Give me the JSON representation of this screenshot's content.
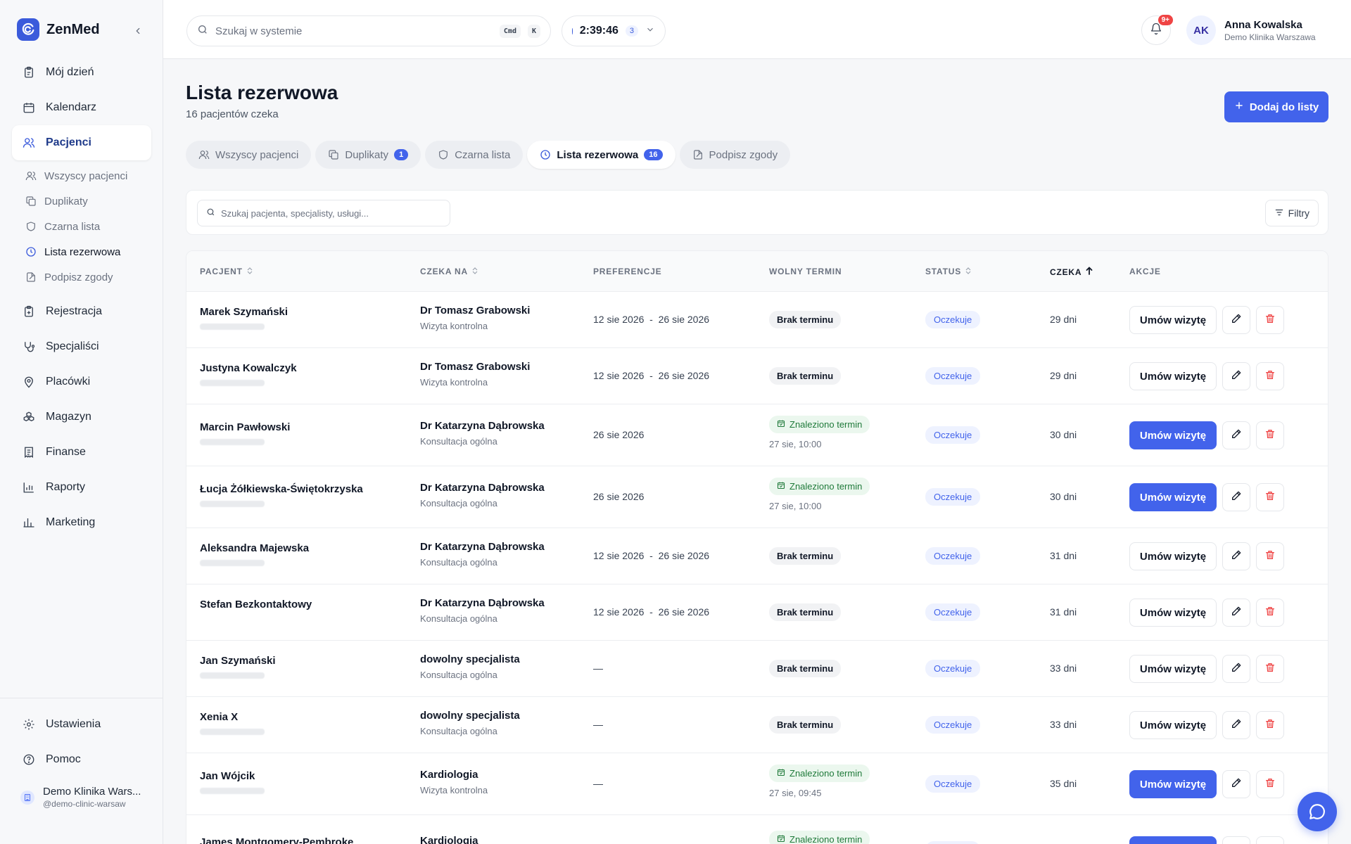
{
  "app": {
    "name": "ZenMed"
  },
  "sidebar": {
    "items": [
      {
        "label": "Mój dzień",
        "icon": "clipboard-icon"
      },
      {
        "label": "Kalendarz",
        "icon": "calendar-icon"
      },
      {
        "label": "Pacjenci",
        "icon": "users-icon",
        "active": true
      },
      {
        "label": "Rejestracja",
        "icon": "clipboard-plus-icon"
      },
      {
        "label": "Specjaliści",
        "icon": "stethoscope-icon"
      },
      {
        "label": "Placówki",
        "icon": "map-pin-icon"
      },
      {
        "label": "Magazyn",
        "icon": "boxes-icon"
      },
      {
        "label": "Finanse",
        "icon": "receipt-icon"
      },
      {
        "label": "Raporty",
        "icon": "bar-chart-icon"
      },
      {
        "label": "Marketing",
        "icon": "trend-chart-icon"
      }
    ],
    "subitems": [
      {
        "label": "Wszyscy pacjenci",
        "icon": "users-icon"
      },
      {
        "label": "Duplikaty",
        "icon": "copy-icon"
      },
      {
        "label": "Czarna lista",
        "icon": "shield-icon"
      },
      {
        "label": "Lista rezerwowa",
        "icon": "clock-icon",
        "active": true
      },
      {
        "label": "Podpisz zgody",
        "icon": "file-signature-icon"
      }
    ],
    "bottom": {
      "settings": "Ustawienia",
      "help": "Pomoc",
      "clinic_name": "Demo Klinika Wars...",
      "clinic_handle": "@demo-clinic-warsaw"
    }
  },
  "topbar": {
    "search_placeholder": "Szukaj w systemie",
    "kbd_cmd": "Cmd",
    "kbd_k": "K",
    "timer": "2:39:46",
    "timer_count": "3",
    "notifications_badge": "9+",
    "user_initials": "AK",
    "user_name": "Anna Kowalska",
    "user_clinic": "Demo Klinika Warszawa"
  },
  "page": {
    "title": "Lista rezerwowa",
    "subtitle": "16 pacjentów czeka",
    "add_button": "Dodaj do listy"
  },
  "tabs": [
    {
      "label": "Wszyscy pacjenci",
      "icon": "users-icon",
      "count": ""
    },
    {
      "label": "Duplikaty",
      "icon": "copy-icon",
      "count": "1"
    },
    {
      "label": "Czarna lista",
      "icon": "shield-icon",
      "count": ""
    },
    {
      "label": "Lista rezerwowa",
      "icon": "clock-icon",
      "count": "16",
      "active": true
    },
    {
      "label": "Podpisz zgody",
      "icon": "file-signature-icon",
      "count": ""
    }
  ],
  "filter": {
    "search_placeholder": "Szukaj pacjenta, specjalisty, usługi...",
    "filters_label": "Filtry"
  },
  "table": {
    "headers": {
      "patient": "PACJENT",
      "waits_for": "CZEKA NA",
      "preferences": "PREFERENCJE",
      "free_slot": "WOLNY TERMIN",
      "status": "STATUS",
      "waiting": "CZEKA",
      "actions": "AKCJE"
    },
    "rows": [
      {
        "patient": "Marek Szymański",
        "doctor": "Dr Tomasz Grabowski",
        "service": "Wizyta kontrolna",
        "pref_from": "12 sie 2026",
        "pref_to": "26 sie 2026",
        "slot": "Brak terminu",
        "slot_time": "",
        "status": "Oczekuje",
        "waits": "29 dni",
        "action": "Umów wizytę"
      },
      {
        "patient": "Justyna Kowalczyk",
        "doctor": "Dr Tomasz Grabowski",
        "service": "Wizyta kontrolna",
        "pref_from": "12 sie 2026",
        "pref_to": "26 sie 2026",
        "slot": "Brak terminu",
        "slot_time": "",
        "status": "Oczekuje",
        "waits": "29 dni",
        "action": "Umów wizytę"
      },
      {
        "patient": "Marcin Pawłowski",
        "doctor": "Dr Katarzyna Dąbrowska",
        "service": "Konsultacja ogólna",
        "pref_from": "26 sie 2026",
        "pref_to": "",
        "slot": "Znaleziono termin",
        "slot_time": "27 sie, 10:00",
        "status": "Oczekuje",
        "waits": "30 dni",
        "action": "Umów wizytę"
      },
      {
        "patient": "Łucja Żółkiewska-Świętokrzyska",
        "doctor": "Dr Katarzyna Dąbrowska",
        "service": "Konsultacja ogólna",
        "pref_from": "26 sie 2026",
        "pref_to": "",
        "slot": "Znaleziono termin",
        "slot_time": "27 sie, 10:00",
        "status": "Oczekuje",
        "waits": "30 dni",
        "action": "Umów wizytę"
      },
      {
        "patient": "Aleksandra Majewska",
        "doctor": "Dr Katarzyna Dąbrowska",
        "service": "Konsultacja ogólna",
        "pref_from": "12 sie 2026",
        "pref_to": "26 sie 2026",
        "slot": "Brak terminu",
        "slot_time": "",
        "status": "Oczekuje",
        "waits": "31 dni",
        "action": "Umów wizytę"
      },
      {
        "patient": "Stefan Bezkontaktowy",
        "doctor": "Dr Katarzyna Dąbrowska",
        "service": "Konsultacja ogólna",
        "pref_from": "12 sie 2026",
        "pref_to": "26 sie 2026",
        "slot": "Brak terminu",
        "slot_time": "",
        "status": "Oczekuje",
        "waits": "31 dni",
        "action": "Umów wizytę"
      },
      {
        "patient": "Jan Szymański",
        "doctor": "dowolny specjalista",
        "service": "Konsultacja ogólna",
        "pref_from": "—",
        "pref_to": "",
        "slot": "Brak terminu",
        "slot_time": "",
        "status": "Oczekuje",
        "waits": "33 dni",
        "action": "Umów wizytę"
      },
      {
        "patient": "Xenia X",
        "doctor": "dowolny specjalista",
        "service": "Konsultacja ogólna",
        "pref_from": "—",
        "pref_to": "",
        "slot": "Brak terminu",
        "slot_time": "",
        "status": "Oczekuje",
        "waits": "33 dni",
        "action": "Umów wizytę"
      },
      {
        "patient": "Jan Wójcik",
        "doctor": "Kardiologia",
        "service": "Wizyta kontrolna",
        "pref_from": "—",
        "pref_to": "",
        "slot": "Znaleziono termin",
        "slot_time": "27 sie, 09:45",
        "status": "Oczekuje",
        "waits": "35 dni",
        "action": "Umów wizytę"
      },
      {
        "patient": "James Montgomery-Pembroke",
        "doctor": "Kardiologia",
        "service": "",
        "pref_from": "",
        "pref_to": "",
        "slot": "Znaleziono termin",
        "slot_time": "",
        "status": "Oczekuje",
        "waits": "",
        "action": "Umów wizytę"
      }
    ]
  }
}
